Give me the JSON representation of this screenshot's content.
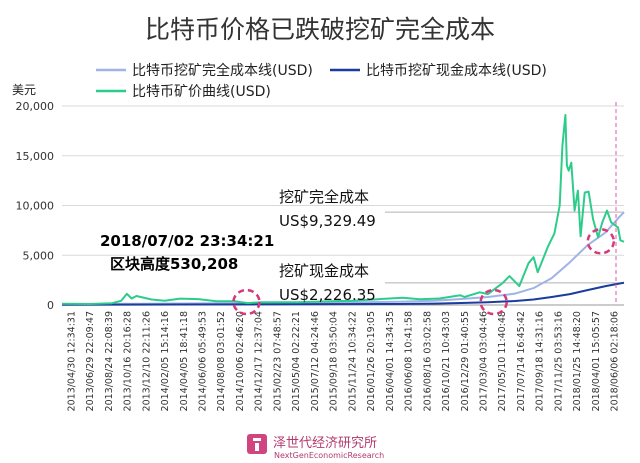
{
  "colors": {
    "full_cost": "#9fb3e6",
    "cash_cost": "#1a3c9e",
    "price": "#2ecc8a",
    "marker": "#d63a7a",
    "reference_line": "#e05aa8"
  },
  "chart_data": {
    "type": "line",
    "title": "比特币价格已跌破挖矿完全成本",
    "ylabel": "美元",
    "ylim": [
      0,
      20000
    ],
    "yticks": [
      0,
      5000,
      10000,
      15000,
      20000
    ],
    "ytick_labels": [
      "0",
      "5,000",
      "10,000",
      "15,000",
      "20,000"
    ],
    "xlim": [
      "2013/04/30",
      "2018/07/02"
    ],
    "xtick_labels": [
      "2013/04/30 12:34:31",
      "2013/06/29 22:09:47",
      "2013/08/24 22:08:39",
      "2013/10/16 20:16:28",
      "2013/12/10 22:11:26",
      "2014/02/05 15:14:16",
      "2014/04/05 18:41:18",
      "2014/06/06 05:49:53",
      "2014/08/08 03:01:52",
      "2014/10/06 02:46:20",
      "2014/12/17 12:37:04",
      "2015/02/23 07:48:57",
      "2015/05/04 02:22:21",
      "2015/07/12 04:24:46",
      "2015/09/18 03:50:04",
      "2015/11/24 10:34:22",
      "2016/01/26 20:19:05",
      "2016/04/01 14:34:35",
      "2016/06/08 10:41:58",
      "2016/08/16 03:02:58",
      "2016/10/21 10:43:03",
      "2016/12/29 01:40:55",
      "2017/03/04 03:04:46",
      "2017/05/10 11:40:48",
      "2017/07/14 16:45:42",
      "2017/09/18 14:31:16",
      "2017/11/25 03:53:16",
      "2018/01/25 14:48:20",
      "2018/04/01 15:05:57",
      "2018/06/06 02:18:06"
    ],
    "series": [
      {
        "name": "比特币挖矿完全成本线(USD)",
        "color": "#9fb3e6",
        "points": [
          [
            "2013/04/30",
            80
          ],
          [
            "2014/06/01",
            150
          ],
          [
            "2015/06/01",
            200
          ],
          [
            "2016/06/01",
            320
          ],
          [
            "2016/10/01",
            420
          ],
          [
            "2017/01/01",
            600
          ],
          [
            "2017/04/01",
            800
          ],
          [
            "2017/07/01",
            1150
          ],
          [
            "2017/09/01",
            1700
          ],
          [
            "2017/11/01",
            2700
          ],
          [
            "2018/01/01",
            4300
          ],
          [
            "2018/03/01",
            6000
          ],
          [
            "2018/05/01",
            7300
          ],
          [
            "2018/06/15",
            8800
          ],
          [
            "2018/07/02",
            9329.49
          ]
        ]
      },
      {
        "name": "比特币挖矿现金成本线(USD)",
        "color": "#1a3c9e",
        "points": [
          [
            "2013/04/30",
            20
          ],
          [
            "2014/06/01",
            50
          ],
          [
            "2015/06/01",
            70
          ],
          [
            "2016/06/01",
            100
          ],
          [
            "2016/10/01",
            140
          ],
          [
            "2017/01/01",
            200
          ],
          [
            "2017/04/01",
            280
          ],
          [
            "2017/07/01",
            400
          ],
          [
            "2017/09/01",
            550
          ],
          [
            "2017/11/01",
            800
          ],
          [
            "2018/01/01",
            1100
          ],
          [
            "2018/03/01",
            1500
          ],
          [
            "2018/05/01",
            1900
          ],
          [
            "2018/06/15",
            2150
          ],
          [
            "2018/07/02",
            2226.35
          ]
        ]
      },
      {
        "name": "比特币矿价曲线(USD)",
        "color": "#2ecc8a",
        "points": [
          [
            "2013/04/30",
            130
          ],
          [
            "2013/08/01",
            100
          ],
          [
            "2013/10/15",
            180
          ],
          [
            "2013/11/15",
            420
          ],
          [
            "2013/12/04",
            1130
          ],
          [
            "2013/12/20",
            650
          ],
          [
            "2014/01/05",
            900
          ],
          [
            "2014/02/25",
            550
          ],
          [
            "2014/04/10",
            430
          ],
          [
            "2014/06/01",
            640
          ],
          [
            "2014/08/01",
            590
          ],
          [
            "2014/10/01",
            380
          ],
          [
            "2014/12/01",
            380
          ],
          [
            "2015/01/14",
            190
          ],
          [
            "2015/03/01",
            270
          ],
          [
            "2015/07/01",
            270
          ],
          [
            "2015/11/05",
            390
          ],
          [
            "2016/01/01",
            430
          ],
          [
            "2016/06/18",
            720
          ],
          [
            "2016/08/15",
            580
          ],
          [
            "2016/10/20",
            650
          ],
          [
            "2016/12/29",
            975
          ],
          [
            "2017/01/12",
            800
          ],
          [
            "2017/03/04",
            1280
          ],
          [
            "2017/04/01",
            1100
          ],
          [
            "2017/05/20",
            2200
          ],
          [
            "2017/06/12",
            2900
          ],
          [
            "2017/07/15",
            1900
          ],
          [
            "2017/08/15",
            4200
          ],
          [
            "2017/09/01",
            4800
          ],
          [
            "2017/09/15",
            3300
          ],
          [
            "2017/10/20",
            5900
          ],
          [
            "2017/11/10",
            7200
          ],
          [
            "2017/11/28",
            10000
          ],
          [
            "2017/12/07",
            16000
          ],
          [
            "2017/12/17",
            19100
          ],
          [
            "2017/12/22",
            14000
          ],
          [
            "2017/12/28",
            13500
          ],
          [
            "2018/01/06",
            14300
          ],
          [
            "2018/01/17",
            9500
          ],
          [
            "2018/01/28",
            11500
          ],
          [
            "2018/02/06",
            6900
          ],
          [
            "2018/02/20",
            11300
          ],
          [
            "2018/03/05",
            11400
          ],
          [
            "2018/03/20",
            8600
          ],
          [
            "2018/04/06",
            6800
          ],
          [
            "2018/04/20",
            8300
          ],
          [
            "2018/05/06",
            9500
          ],
          [
            "2018/05/20",
            8300
          ],
          [
            "2018/06/12",
            7800
          ],
          [
            "2018/06/20",
            6500
          ],
          [
            "2018/07/02",
            6350
          ]
        ]
      }
    ],
    "annotations": [
      {
        "text_lines": [
          "挖矿完全成本",
          "US$9,329.49"
        ],
        "style": "normal"
      },
      {
        "text_lines": [
          "挖矿现金成本",
          "US$2,226.35"
        ],
        "style": "normal"
      },
      {
        "text_lines": [
          "2018/07/02 23:34:21",
          "区块高度530,208"
        ],
        "style": "bold"
      }
    ],
    "highlight_dates": [
      "2015/01/10",
      "2017/04/20",
      "2018/04/15"
    ],
    "reference_date": "2018/07/02",
    "grid": true,
    "legend_placement": "top-left"
  },
  "brand": {
    "name_cn": "泽世代经济研究所",
    "name_en": "NextGenEconomicResearch"
  }
}
